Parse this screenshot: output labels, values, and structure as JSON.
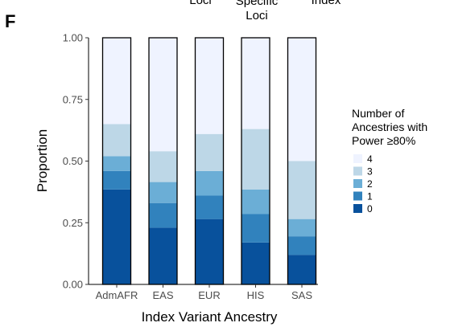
{
  "panel_label": "F",
  "top_fragments": {
    "left": "Loci",
    "middle_line1": "Specific",
    "middle_line2": "Loci",
    "right": "Index"
  },
  "legend": {
    "title_line1": "Number of",
    "title_line2": "Ancestries with",
    "title_line3": "Power ≥80%",
    "items": [
      {
        "label": "4",
        "color": "#eff3ff"
      },
      {
        "label": "3",
        "color": "#bdd7e7"
      },
      {
        "label": "2",
        "color": "#6baed6"
      },
      {
        "label": "1",
        "color": "#3182bd"
      },
      {
        "label": "0",
        "color": "#08519c"
      }
    ]
  },
  "chart_data": {
    "type": "bar",
    "stacked": true,
    "categories": [
      "AdmAFR",
      "EAS",
      "EUR",
      "HIS",
      "SAS"
    ],
    "xlabel": "Index Variant Ancestry",
    "ylabel": "Proportion",
    "ylim": [
      0,
      1
    ],
    "yticks": [
      "0.00",
      "0.25",
      "0.50",
      "0.75",
      "1.00"
    ],
    "grid": false,
    "legend_position": "right",
    "series": [
      {
        "name": "0",
        "color": "#08519c",
        "values": [
          0.385,
          0.23,
          0.265,
          0.17,
          0.12
        ]
      },
      {
        "name": "1",
        "color": "#3182bd",
        "values": [
          0.075,
          0.1,
          0.095,
          0.115,
          0.075
        ]
      },
      {
        "name": "2",
        "color": "#6baed6",
        "values": [
          0.06,
          0.085,
          0.1,
          0.1,
          0.07
        ]
      },
      {
        "name": "3",
        "color": "#bdd7e7",
        "values": [
          0.13,
          0.125,
          0.15,
          0.245,
          0.235
        ]
      },
      {
        "name": "4",
        "color": "#eff3ff",
        "values": [
          0.35,
          0.46,
          0.39,
          0.37,
          0.5
        ]
      }
    ]
  }
}
